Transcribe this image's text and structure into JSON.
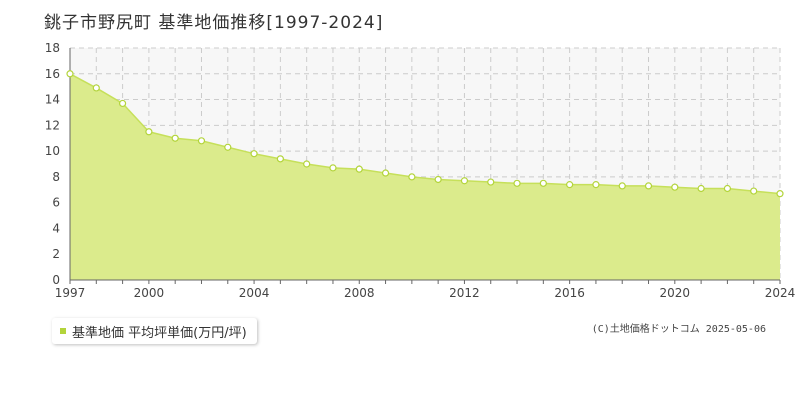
{
  "title": "銚子市野尻町 基準地価推移[1997-2024]",
  "legend": {
    "label": "基準地価 平均坪単価(万円/坪)"
  },
  "credit": "(C)土地価格ドットコム 2025-05-06",
  "colors": {
    "area_fill": "#dbeb8c",
    "line": "#c6e05a",
    "marker_fill": "#ffffff",
    "marker_stroke": "#b3d43b",
    "grid": "#cccccc",
    "plot_background": "#f7f7f7",
    "legend_swatch": "#b3d43b"
  },
  "chart_data": {
    "type": "area",
    "x": [
      1997,
      1998,
      1999,
      2000,
      2001,
      2002,
      2003,
      2004,
      2005,
      2006,
      2007,
      2008,
      2009,
      2010,
      2011,
      2012,
      2013,
      2014,
      2015,
      2016,
      2017,
      2018,
      2019,
      2020,
      2021,
      2022,
      2023,
      2024
    ],
    "series": [
      {
        "name": "基準地価 平均坪単価(万円/坪)",
        "values": [
          16.0,
          14.9,
          13.7,
          11.5,
          11.0,
          10.8,
          10.3,
          9.8,
          9.4,
          9.0,
          8.7,
          8.6,
          8.3,
          8.0,
          7.8,
          7.7,
          7.6,
          7.5,
          7.5,
          7.4,
          7.4,
          7.3,
          7.3,
          7.2,
          7.1,
          7.1,
          6.9,
          6.7
        ]
      }
    ],
    "xlim": [
      1997,
      2024
    ],
    "ylim": [
      0,
      18
    ],
    "x_ticks": [
      1997,
      2000,
      2004,
      2008,
      2012,
      2016,
      2020,
      2024
    ],
    "y_ticks": [
      0,
      2,
      4,
      6,
      8,
      10,
      12,
      14,
      16,
      18
    ],
    "grid": true,
    "legend_position": "bottom-left"
  }
}
